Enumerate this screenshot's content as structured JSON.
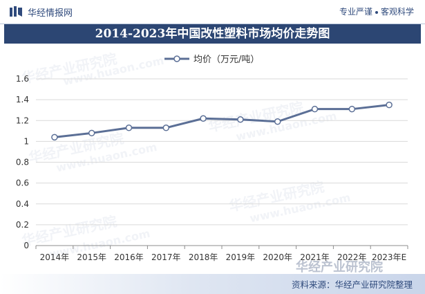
{
  "header": {
    "logo_text": "华经情报网",
    "tagline_left": "专业严谨",
    "tagline_right": "客观科学"
  },
  "chart_data": {
    "type": "line",
    "title": "2014-2023年中国改性塑料市场均价走势图",
    "categories": [
      "2014年",
      "2015年",
      "2016年",
      "2017年",
      "2018年",
      "2019年",
      "2020年",
      "2021年",
      "2022年",
      "2023年E"
    ],
    "series": [
      {
        "name": "均价（万元/吨）",
        "values": [
          1.04,
          1.08,
          1.13,
          1.13,
          1.22,
          1.21,
          1.19,
          1.31,
          1.31,
          1.35
        ]
      }
    ],
    "ylim": [
      0,
      1.6
    ],
    "yticks": [
      "0",
      "0.2",
      "0.4",
      "0.6",
      "0.8",
      "1",
      "1.2",
      "1.4",
      "1.6"
    ],
    "grid": true,
    "legend_position": "top-center",
    "colors": {
      "line": "#5b6f96",
      "marker_fill": "#ffffff",
      "grid": "#d9d9d9"
    }
  },
  "watermarks": {
    "brand": "华经产业研究院",
    "url": "www.huaon.com"
  },
  "footer": {
    "source": "资料来源：华经产业研究院整理"
  }
}
